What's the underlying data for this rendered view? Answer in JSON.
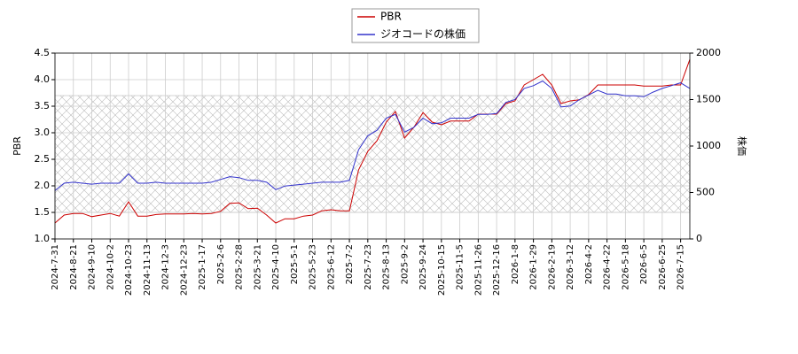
{
  "chart_data": {
    "type": "line",
    "categories": [
      "2024-7-31",
      null,
      "2024-8-21",
      null,
      "2024-9-10",
      null,
      "2024-10-2",
      null,
      "2024-10-23",
      null,
      "2024-11-13",
      null,
      "2024-12-3",
      null,
      "2024-12-23",
      null,
      "2025-1-17",
      null,
      "2025-2-6",
      null,
      "2025-2-28",
      null,
      "2025-3-21",
      null,
      "2025-4-10",
      null,
      "2025-5-1",
      null,
      "2025-5-23",
      null,
      "2025-6-12",
      null,
      "2025-7-2",
      null,
      "2025-7-23",
      null,
      "2025-8-13",
      null,
      "2025-9-2",
      null,
      "2025-9-24",
      null,
      "2025-10-15",
      null,
      "2025-11-5",
      null,
      "2025-11-26",
      null,
      "2025-12-16",
      null,
      "2026-1-8",
      null,
      "2026-1-29",
      null,
      "2026-2-19",
      null,
      "2026-3-12",
      null,
      "2026-4-2",
      null,
      "2026-4-22",
      null,
      "2026-5-18",
      null,
      "2026-6-5",
      null,
      "2026-6-25",
      null,
      "2026-7-15",
      null
    ],
    "series": [
      {
        "name": "PBR",
        "color": "#cc0000",
        "axis": "y",
        "values": [
          1.3,
          1.45,
          1.48,
          1.48,
          1.42,
          1.45,
          1.48,
          1.43,
          1.7,
          1.43,
          1.43,
          1.46,
          1.47,
          1.47,
          1.47,
          1.48,
          1.47,
          1.48,
          1.52,
          1.67,
          1.68,
          1.57,
          1.58,
          1.45,
          1.3,
          1.38,
          1.38,
          1.43,
          1.45,
          1.53,
          1.55,
          1.53,
          1.53,
          2.3,
          2.65,
          2.85,
          3.2,
          3.4,
          2.9,
          3.1,
          3.38,
          3.2,
          3.15,
          3.22,
          3.22,
          3.22,
          3.35,
          3.35,
          3.35,
          3.55,
          3.6,
          3.9,
          4.0,
          4.1,
          3.9,
          3.55,
          3.6,
          3.62,
          3.72,
          3.9,
          3.9,
          3.9,
          3.9,
          3.9,
          3.88,
          3.88,
          3.88,
          3.9,
          3.9,
          4.38
        ]
      },
      {
        "name": "ジオコードの株価",
        "color": "#3333cc",
        "axis": "y2",
        "values": [
          520,
          600,
          610,
          600,
          590,
          600,
          600,
          600,
          700,
          600,
          600,
          610,
          600,
          600,
          600,
          600,
          600,
          610,
          640,
          670,
          660,
          630,
          630,
          610,
          530,
          570,
          580,
          590,
          600,
          610,
          610,
          610,
          630,
          960,
          1110,
          1170,
          1300,
          1340,
          1150,
          1200,
          1300,
          1240,
          1250,
          1300,
          1300,
          1300,
          1340,
          1340,
          1350,
          1470,
          1500,
          1620,
          1650,
          1700,
          1620,
          1420,
          1430,
          1500,
          1550,
          1600,
          1560,
          1560,
          1540,
          1540,
          1530,
          1580,
          1620,
          1650,
          1680,
          1620
        ]
      }
    ],
    "y_label": "PBR",
    "y2_label": "株価",
    "ylim": [
      1.0,
      4.5
    ],
    "yticks": [
      {
        "value": 1.0,
        "label": "1.0"
      },
      1.5,
      {
        "value": 2.0,
        "label": "2.0"
      },
      2.5,
      {
        "value": 3.0,
        "label": "3.0"
      },
      3.5,
      {
        "value": 4.0,
        "label": "4.0"
      },
      4.5
    ],
    "y2lim": [
      0,
      2000
    ],
    "y2ticks": [
      0,
      500,
      1000,
      1500,
      2000
    ],
    "band": [
      1.5,
      3.7
    ],
    "grid": true
  }
}
